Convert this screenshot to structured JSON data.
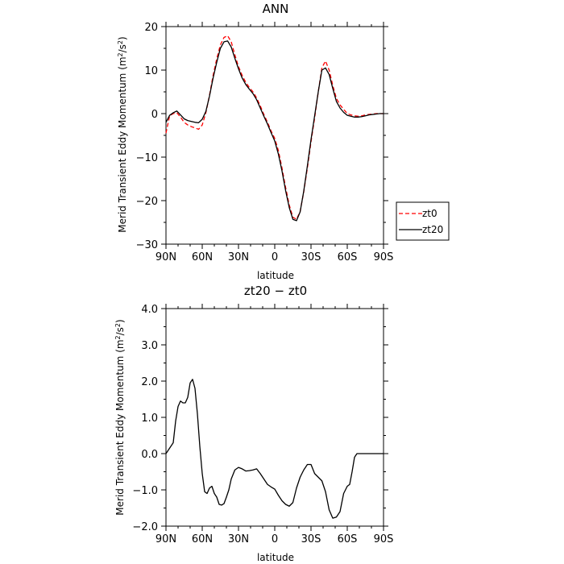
{
  "chart_data": [
    {
      "type": "line",
      "title": "ANN",
      "xlabel": "latitude",
      "ylabel_main": "Merid Transient Eddy Momentum (m",
      "ylabel_sup": "2",
      "ylabel_mid": "/s",
      "ylabel_end": ")",
      "xlim": [
        90,
        -90
      ],
      "ylim": [
        -30,
        20
      ],
      "x_ticks": [
        90,
        60,
        30,
        0,
        -30,
        -60,
        -90
      ],
      "x_tick_labels": [
        "90N",
        "60N",
        "30N",
        "0",
        "30S",
        "60S",
        "90S"
      ],
      "y_ticks": [
        20,
        10,
        0,
        -10,
        -20,
        -30
      ],
      "y_tick_labels": [
        "20",
        "10",
        "0",
        "−10",
        "−20",
        "−30"
      ],
      "legend": {
        "placement": "right",
        "entries": [
          "zt0",
          "zt20"
        ]
      },
      "series": [
        {
          "name": "zt0",
          "color": "#ff0000",
          "dash": true,
          "x": [
            90,
            87,
            84,
            81,
            78,
            75,
            72,
            69,
            66,
            63,
            60,
            57,
            54,
            51,
            48,
            45,
            42,
            39,
            36,
            33,
            30,
            27,
            24,
            21,
            18,
            15,
            12,
            9,
            6,
            3,
            0,
            -3,
            -6,
            -9,
            -12,
            -15,
            -18,
            -21,
            -24,
            -27,
            -30,
            -33,
            -36,
            -39,
            -42,
            -45,
            -48,
            -51,
            -54,
            -57,
            -60,
            -63,
            -66,
            -69,
            -72,
            -75,
            -78,
            -81,
            -84,
            -87,
            -90
          ],
          "y": [
            -4.5,
            -0.5,
            0.0,
            0.2,
            -0.8,
            -2.0,
            -2.6,
            -3.0,
            -3.3,
            -3.6,
            -2.6,
            0.2,
            4.2,
            8.8,
            12.6,
            15.8,
            17.5,
            17.9,
            16.5,
            13.5,
            10.8,
            8.8,
            7.2,
            6.0,
            5.0,
            3.6,
            1.8,
            -0.2,
            -2.0,
            -4.0,
            -5.7,
            -8.5,
            -12.5,
            -17.0,
            -21.0,
            -23.8,
            -24.3,
            -22.5,
            -18.0,
            -12.5,
            -6.5,
            -1.0,
            5.0,
            10.5,
            12.1,
            10.0,
            6.5,
            3.5,
            2.0,
            1.0,
            0.0,
            -0.3,
            -0.5,
            -0.6,
            -0.5,
            -0.3,
            -0.2,
            -0.1,
            0.0,
            0.0,
            0.0
          ]
        },
        {
          "name": "zt20",
          "color": "#000000",
          "dash": false,
          "x": [
            90,
            87,
            84,
            81,
            78,
            75,
            72,
            69,
            66,
            63,
            60,
            57,
            54,
            51,
            48,
            45,
            42,
            39,
            36,
            33,
            30,
            27,
            24,
            21,
            18,
            15,
            12,
            9,
            6,
            3,
            0,
            -3,
            -6,
            -9,
            -12,
            -15,
            -18,
            -21,
            -24,
            -27,
            -30,
            -33,
            -36,
            -39,
            -42,
            -45,
            -48,
            -51,
            -54,
            -57,
            -60,
            -63,
            -66,
            -69,
            -72,
            -75,
            -78,
            -81,
            -84,
            -87,
            -90
          ],
          "y": [
            -2.0,
            -0.4,
            0.2,
            0.6,
            -0.3,
            -1.2,
            -1.6,
            -1.8,
            -2.0,
            -2.1,
            -1.3,
            0.5,
            4.0,
            8.2,
            11.8,
            15.0,
            16.5,
            16.7,
            15.3,
            12.7,
            10.3,
            8.2,
            6.7,
            5.6,
            4.6,
            3.2,
            1.3,
            -0.6,
            -2.4,
            -4.4,
            -6.3,
            -9.3,
            -13.2,
            -17.7,
            -21.6,
            -24.3,
            -24.6,
            -22.6,
            -17.8,
            -12.0,
            -6.0,
            -0.5,
            5.0,
            10.0,
            10.5,
            9.0,
            5.8,
            2.8,
            1.3,
            0.3,
            -0.4,
            -0.6,
            -0.8,
            -0.8,
            -0.7,
            -0.5,
            -0.3,
            -0.2,
            -0.1,
            0.0,
            0.0
          ]
        }
      ]
    },
    {
      "type": "line",
      "title": "zt20 − zt0",
      "xlabel": "latitude",
      "ylabel_main": "Merid Transient Eddy Momentum (m",
      "ylabel_sup": "2",
      "ylabel_mid": "/s",
      "ylabel_end": ")",
      "xlim": [
        90,
        -90
      ],
      "ylim": [
        -2.0,
        4.0
      ],
      "x_ticks": [
        90,
        60,
        30,
        0,
        -30,
        -60,
        -90
      ],
      "x_tick_labels": [
        "90N",
        "60N",
        "30N",
        "0",
        "30S",
        "60S",
        "90S"
      ],
      "y_ticks": [
        4.0,
        3.0,
        2.0,
        1.0,
        0.0,
        -1.0,
        -2.0
      ],
      "y_tick_labels": [
        "4.0",
        "3.0",
        "2.0",
        "1.0",
        "0.0",
        "−1.0",
        "−2.0"
      ],
      "series": [
        {
          "color": "#000000",
          "dash": false,
          "x": [
            90,
            87,
            84,
            82,
            80,
            78,
            76,
            74,
            72,
            70,
            68,
            66,
            64,
            62,
            60,
            58,
            56,
            54,
            52,
            50,
            48,
            46,
            44,
            42,
            40,
            38,
            36,
            33,
            30,
            27,
            24,
            21,
            18,
            15,
            12,
            9,
            6,
            3,
            0,
            -3,
            -6,
            -9,
            -12,
            -15,
            -18,
            -21,
            -24,
            -27,
            -30,
            -33,
            -36,
            -39,
            -42,
            -45,
            -48,
            -51,
            -54,
            -57,
            -60,
            -62,
            -64,
            -66,
            -68,
            -70,
            -72,
            -74,
            -76,
            -78,
            -80,
            -82,
            -84,
            -86,
            -88,
            -90
          ],
          "y": [
            0.0,
            0.15,
            0.3,
            0.9,
            1.3,
            1.45,
            1.4,
            1.4,
            1.55,
            1.95,
            2.05,
            1.8,
            1.1,
            0.2,
            -0.55,
            -1.05,
            -1.1,
            -0.95,
            -0.9,
            -1.1,
            -1.2,
            -1.4,
            -1.42,
            -1.38,
            -1.2,
            -1.0,
            -0.7,
            -0.45,
            -0.38,
            -0.42,
            -0.48,
            -0.47,
            -0.45,
            -0.42,
            -0.55,
            -0.7,
            -0.85,
            -0.92,
            -0.98,
            -1.15,
            -1.3,
            -1.4,
            -1.45,
            -1.35,
            -0.95,
            -0.65,
            -0.45,
            -0.3,
            -0.3,
            -0.55,
            -0.65,
            -0.75,
            -1.05,
            -1.55,
            -1.78,
            -1.75,
            -1.6,
            -1.1,
            -0.9,
            -0.85,
            -0.5,
            -0.1,
            0.0,
            0.0,
            0.0,
            0.0,
            0.0,
            0.0,
            0.0,
            0.0,
            0.0,
            0.0,
            0.0,
            0.0
          ]
        }
      ]
    }
  ]
}
